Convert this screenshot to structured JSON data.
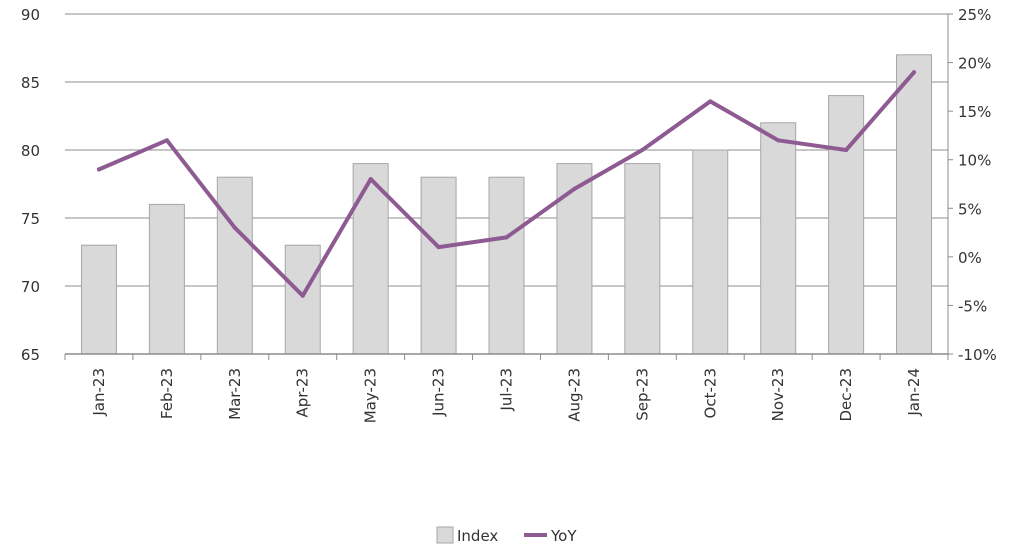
{
  "chart_data": {
    "type": "bar",
    "categories": [
      "Jan-23",
      "Feb-23",
      "Mar-23",
      "Apr-23",
      "May-23",
      "Jun-23",
      "Jul-23",
      "Aug-23",
      "Sep-23",
      "Oct-23",
      "Nov-23",
      "Dec-23",
      "Jan-24"
    ],
    "series": [
      {
        "name": "Index",
        "type": "bar",
        "axis": "left",
        "color": "#d9d9d9",
        "values": [
          73,
          76,
          78,
          73,
          79,
          78,
          78,
          79,
          79,
          80,
          82,
          84,
          87
        ]
      },
      {
        "name": "YoY",
        "type": "line",
        "axis": "right",
        "color": "#8e5a92",
        "values": [
          9,
          12,
          3,
          -4,
          8,
          1,
          2,
          7,
          11,
          16,
          12,
          11,
          19
        ]
      }
    ],
    "y_left": {
      "min": 65,
      "max": 90,
      "step": 5,
      "tick_labels": [
        "65",
        "70",
        "75",
        "80",
        "85",
        "90"
      ]
    },
    "y_right": {
      "min": -10,
      "max": 25,
      "step": 5,
      "tick_labels": [
        "-10%",
        "-5%",
        "0%",
        "5%",
        "10%",
        "15%",
        "20%",
        "25%"
      ]
    },
    "grid": true,
    "legend": {
      "position": "bottom",
      "items": [
        "Index",
        "YoY"
      ]
    }
  }
}
